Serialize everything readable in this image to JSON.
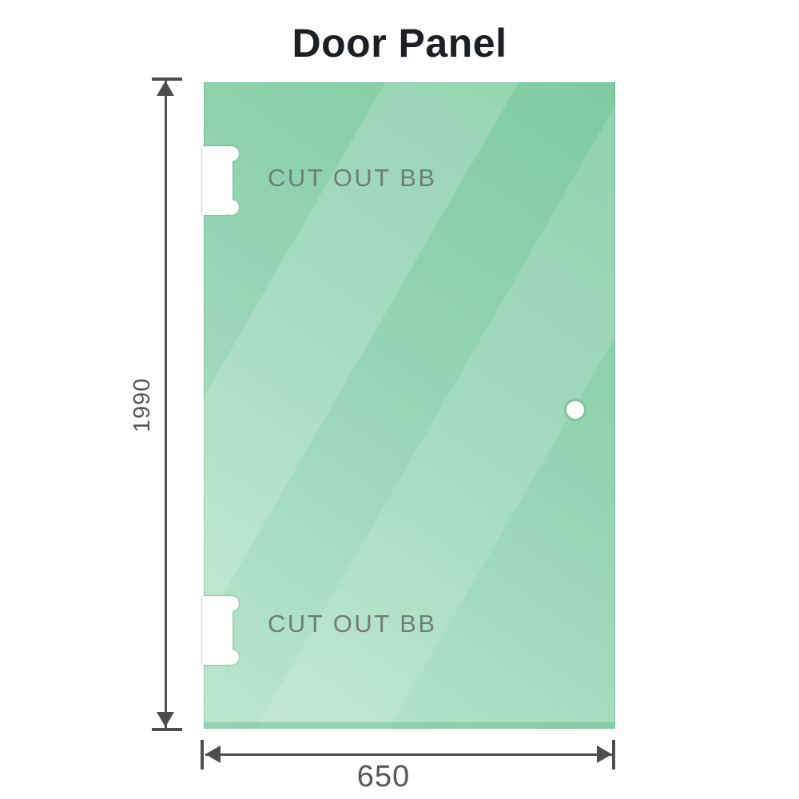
{
  "title": "Door Panel",
  "panel": {
    "top_cutout_label": "CUT OUT BB",
    "bottom_cutout_label": "CUT OUT BB"
  },
  "dimensions": {
    "height_value": "1990",
    "width_value": "650"
  },
  "theme": {
    "colors": {
      "title_text": "#1c1f24",
      "glass_dark": "#7fcba1",
      "glass_mid": "#96d5b3",
      "glass_light": "#bce6cf",
      "glass_edge": "rgba(104,192,144,0.5)",
      "cutout_outline": "rgba(84,150,117,0.85)",
      "hole_ring": "#7fc49e",
      "dimension_line": "#4d4d4d",
      "dim_text": "#575757",
      "label_text": "#6d7f75"
    }
  }
}
